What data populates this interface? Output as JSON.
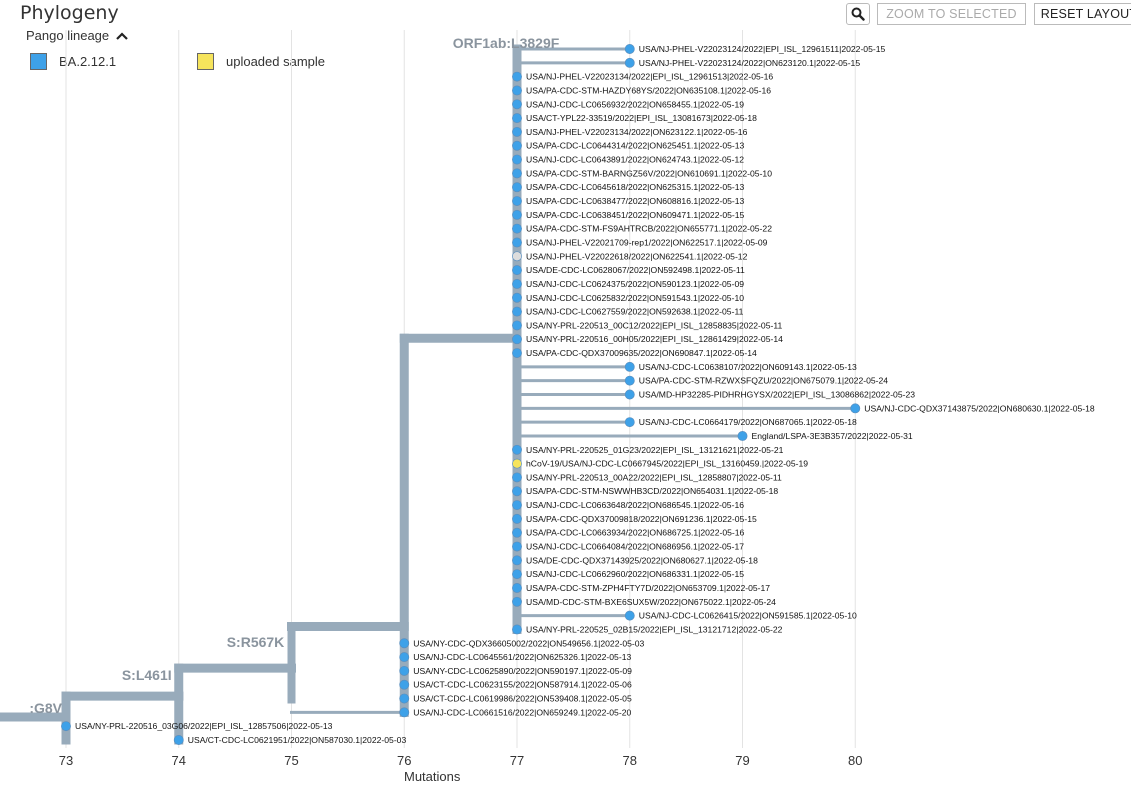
{
  "panel": {
    "title": "Phylogeny",
    "zoom_to_selected_label": "ZOOM TO SELECTED",
    "reset_layout_label": "RESET LAYOUT"
  },
  "legend": {
    "title": "Pango lineage",
    "items": [
      {
        "label": "BA.2.12.1",
        "color": "#3ea1e8"
      },
      {
        "label": "uploaded sample",
        "color": "#f6e45c"
      }
    ]
  },
  "axis": {
    "title": "Mutations",
    "ticks": [
      73,
      74,
      75,
      76,
      77,
      78,
      79,
      80
    ],
    "range": [
      72.6,
      80.6
    ]
  },
  "colors": {
    "branch": "#98abbb",
    "lineage": "#3ea1e8",
    "uploaded": "#f6e45c",
    "unknown": "#dddddd",
    "gridline": "#e3e3e3"
  },
  "mutations": [
    {
      "label": "ORF1ab:L3829F",
      "x": 77
    },
    {
      "label": "S:R567K",
      "x": 75
    },
    {
      "label": "S:L461I",
      "x": 74
    },
    {
      "label": ":G8V",
      "x": 73
    }
  ],
  "leaves": [
    {
      "label": "USA/NJ-PHEL-V22023124/2022|EPI_ISL_12961511|2022-05-15",
      "x": 78,
      "type": "lineage"
    },
    {
      "label": "USA/NJ-PHEL-V22023124/2022|ON623120.1|2022-05-15",
      "x": 78,
      "type": "lineage"
    },
    {
      "label": "USA/NJ-PHEL-V22023134/2022|EPI_ISL_12961513|2022-05-16",
      "x": 77,
      "type": "lineage"
    },
    {
      "label": "USA/PA-CDC-STM-HAZDY68YS/2022|ON635108.1|2022-05-16",
      "x": 77,
      "type": "lineage"
    },
    {
      "label": "USA/NJ-CDC-LC0656932/2022|ON658455.1|2022-05-19",
      "x": 77,
      "type": "lineage"
    },
    {
      "label": "USA/CT-YPL22-33519/2022|EPI_ISL_13081673|2022-05-18",
      "x": 77,
      "type": "lineage"
    },
    {
      "label": "USA/NJ-PHEL-V22023134/2022|ON623122.1|2022-05-16",
      "x": 77,
      "type": "lineage"
    },
    {
      "label": "USA/PA-CDC-LC0644314/2022|ON625451.1|2022-05-13",
      "x": 77,
      "type": "lineage"
    },
    {
      "label": "USA/NJ-CDC-LC0643891/2022|ON624743.1|2022-05-12",
      "x": 77,
      "type": "lineage"
    },
    {
      "label": "USA/PA-CDC-STM-BARNGZ56V/2022|ON610691.1|2022-05-10",
      "x": 77,
      "type": "lineage"
    },
    {
      "label": "USA/PA-CDC-LC0645618/2022|ON625315.1|2022-05-13",
      "x": 77,
      "type": "lineage"
    },
    {
      "label": "USA/PA-CDC-LC0638477/2022|ON608816.1|2022-05-13",
      "x": 77,
      "type": "lineage"
    },
    {
      "label": "USA/PA-CDC-LC0638451/2022|ON609471.1|2022-05-15",
      "x": 77,
      "type": "lineage"
    },
    {
      "label": "USA/PA-CDC-STM-FS9AHTRCB/2022|ON655771.1|2022-05-22",
      "x": 77,
      "type": "lineage"
    },
    {
      "label": "USA/NJ-PHEL-V22021709-rep1/2022|ON622517.1|2022-05-09",
      "x": 77,
      "type": "lineage"
    },
    {
      "label": "USA/NJ-PHEL-V22022618/2022|ON622541.1|2022-05-12",
      "x": 77,
      "type": "unknown"
    },
    {
      "label": "USA/DE-CDC-LC0628067/2022|ON592498.1|2022-05-11",
      "x": 77,
      "type": "lineage"
    },
    {
      "label": "USA/NJ-CDC-LC0624375/2022|ON590123.1|2022-05-09",
      "x": 77,
      "type": "lineage"
    },
    {
      "label": "USA/NJ-CDC-LC0625832/2022|ON591543.1|2022-05-10",
      "x": 77,
      "type": "lineage"
    },
    {
      "label": "USA/NJ-CDC-LC0627559/2022|ON592638.1|2022-05-11",
      "x": 77,
      "type": "lineage"
    },
    {
      "label": "USA/NY-PRL-220513_00C12/2022|EPI_ISL_12858835|2022-05-11",
      "x": 77,
      "type": "lineage"
    },
    {
      "label": "USA/NY-PRL-220516_00H05/2022|EPI_ISL_12861429|2022-05-14",
      "x": 77,
      "type": "lineage"
    },
    {
      "label": "USA/PA-CDC-QDX37009635/2022|ON690847.1|2022-05-14",
      "x": 77,
      "type": "lineage"
    },
    {
      "label": "USA/NJ-CDC-LC0638107/2022|ON609143.1|2022-05-13",
      "x": 78,
      "type": "lineage"
    },
    {
      "label": "USA/PA-CDC-STM-RZWXSFQZU/2022|ON675079.1|2022-05-24",
      "x": 78,
      "type": "lineage"
    },
    {
      "label": "USA/MD-HP32285-PIDHRHGYSX/2022|EPI_ISL_13086862|2022-05-23",
      "x": 78,
      "type": "lineage"
    },
    {
      "label": "USA/NJ-CDC-QDX37143875/2022|ON680630.1|2022-05-18",
      "x": 80,
      "type": "lineage"
    },
    {
      "label": "USA/NJ-CDC-LC0664179/2022|ON687065.1|2022-05-18",
      "x": 78,
      "type": "lineage"
    },
    {
      "label": "England/LSPA-3E3B357/2022|2022-05-31",
      "x": 79,
      "type": "lineage"
    },
    {
      "label": "USA/NY-PRL-220525_01G23/2022|EPI_ISL_13121621|2022-05-21",
      "x": 77,
      "type": "lineage"
    },
    {
      "label": "hCoV-19/USA/NJ-CDC-LC0667945/2022|EPI_ISL_13160459.|2022-05-19",
      "x": 77,
      "type": "uploaded"
    },
    {
      "label": "USA/NY-PRL-220513_00A22/2022|EPI_ISL_12858807|2022-05-11",
      "x": 77,
      "type": "lineage"
    },
    {
      "label": "USA/PA-CDC-STM-NSWWHB3CD/2022|ON654031.1|2022-05-18",
      "x": 77,
      "type": "lineage"
    },
    {
      "label": "USA/NJ-CDC-LC0663648/2022|ON686545.1|2022-05-16",
      "x": 77,
      "type": "lineage"
    },
    {
      "label": "USA/PA-CDC-QDX37009818/2022|ON691236.1|2022-05-15",
      "x": 77,
      "type": "lineage"
    },
    {
      "label": "USA/PA-CDC-LC0663934/2022|ON686725.1|2022-05-16",
      "x": 77,
      "type": "lineage"
    },
    {
      "label": "USA/NJ-CDC-LC0664084/2022|ON686956.1|2022-05-17",
      "x": 77,
      "type": "lineage"
    },
    {
      "label": "USA/DE-CDC-QDX37143925/2022|ON680627.1|2022-05-18",
      "x": 77,
      "type": "lineage"
    },
    {
      "label": "USA/NJ-CDC-LC0662960/2022|ON686331.1|2022-05-15",
      "x": 77,
      "type": "lineage"
    },
    {
      "label": "USA/PA-CDC-STM-ZPH4FTY7D/2022|ON653709.1|2022-05-17",
      "x": 77,
      "type": "lineage"
    },
    {
      "label": "USA/MD-CDC-STM-BXE6SUX5W/2022|ON675022.1|2022-05-24",
      "x": 77,
      "type": "lineage"
    },
    {
      "label": "USA/NJ-CDC-LC0626415/2022|ON591585.1|2022-05-10",
      "x": 78,
      "type": "lineage"
    },
    {
      "label": "USA/NY-PRL-220525_02B15/2022|EPI_ISL_13121712|2022-05-22",
      "x": 77,
      "type": "lineage"
    },
    {
      "label": "USA/NY-CDC-QDX36605002/2022|ON549656.1|2022-05-03",
      "x": 76,
      "type": "lineage"
    },
    {
      "label": "USA/NJ-CDC-LC0645561/2022|ON625326.1|2022-05-13",
      "x": 76,
      "type": "lineage"
    },
    {
      "label": "USA/NY-CDC-LC0625890/2022|ON590197.1|2022-05-09",
      "x": 76,
      "type": "lineage"
    },
    {
      "label": "USA/CT-CDC-LC0623155/2022|ON587914.1|2022-05-06",
      "x": 76,
      "type": "lineage"
    },
    {
      "label": "USA/CT-CDC-LC0619986/2022|ON539408.1|2022-05-05",
      "x": 76,
      "type": "lineage"
    },
    {
      "label": "USA/NJ-CDC-LC0661516/2022|ON659249.1|2022-05-20",
      "x": 76,
      "type": "lineage"
    },
    {
      "label": "USA/NY-PRL-220516_03G06/2022|EPI_ISL_12857506|2022-05-13",
      "x": 73,
      "type": "lineage"
    },
    {
      "label": "USA/CT-CDC-LC0621951/2022|ON587030.1|2022-05-03",
      "x": 74,
      "type": "lineage"
    }
  ]
}
